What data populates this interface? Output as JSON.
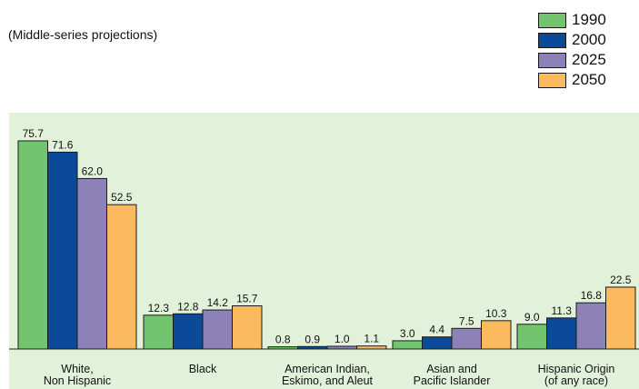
{
  "subtitle": "(Middle-series projections)",
  "colors": {
    "1990": "#72c46e",
    "2000": "#0b4a98",
    "2025": "#8c82b8",
    "2050": "#fdb95e",
    "panel": "#e2f1da"
  },
  "chart_data": {
    "type": "bar",
    "categories": [
      [
        "White,",
        "Non Hispanic"
      ],
      [
        "Black"
      ],
      [
        "American Indian,",
        "Eskimo, and Aleut"
      ],
      [
        "Asian and",
        "Pacific Islander"
      ],
      [
        "Hispanic Origin",
        "(of any race)"
      ]
    ],
    "series": [
      {
        "name": "1990",
        "color": "#72c46e",
        "values": [
          75.7,
          12.3,
          0.8,
          3.0,
          9.0
        ]
      },
      {
        "name": "2000",
        "color": "#0b4a98",
        "values": [
          71.6,
          12.8,
          0.9,
          4.4,
          11.3
        ]
      },
      {
        "name": "2025",
        "color": "#8c82b8",
        "values": [
          62.0,
          14.2,
          1.0,
          7.5,
          16.8
        ]
      },
      {
        "name": "2050",
        "color": "#fdb95e",
        "values": [
          52.5,
          15.7,
          1.1,
          10.3,
          22.5
        ]
      }
    ],
    "value_labels": [
      [
        "75.7",
        "12.3",
        "0.8",
        "3.0",
        "9.0"
      ],
      [
        "71.6",
        "12.8",
        "0.9",
        "4.4",
        "11.3"
      ],
      [
        "62.0",
        "14.2",
        "1.0",
        "7.5",
        "16.8"
      ],
      [
        "52.5",
        "15.7",
        "1.1",
        "10.3",
        "22.5"
      ]
    ],
    "title": "",
    "xlabel": "",
    "ylabel": "",
    "ylim": [
      0,
      75.7
    ],
    "grid": false,
    "legend": "top-right"
  }
}
